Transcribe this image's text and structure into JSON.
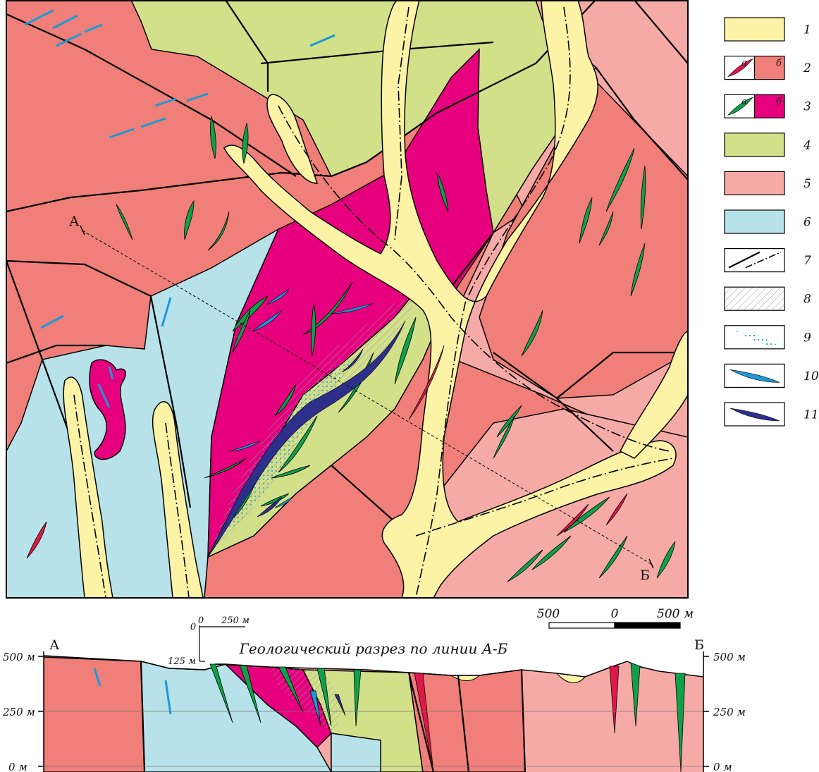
{
  "colors": {
    "alluvium": "#fdf3a6",
    "granite_dark": "#ef7f78",
    "granite_dike": "#e0184a",
    "basite_dike": "#10a04a",
    "basite_massif": "#e6007e",
    "greenstone": "#d3e08a",
    "granite_light": "#f6aaa6",
    "metamorphic": "#b7e2ea",
    "ore_light": "#1a9ad6",
    "ore_dark": "#2e2f8a"
  },
  "profile": {
    "start": "А",
    "end": "Б"
  },
  "legend": [
    {
      "number": "1",
      "kind": "fill",
      "color": "#fdf3a6"
    },
    {
      "number": "2",
      "kind": "split",
      "sub_a": "а",
      "sub_b": "б",
      "color_a": "#e0184a",
      "color_b": "#ef7f78"
    },
    {
      "number": "3",
      "kind": "split",
      "sub_a": "а",
      "sub_b": "б",
      "color_a": "#10a04a",
      "color_b": "#e6007e"
    },
    {
      "number": "4",
      "kind": "fill",
      "color": "#d3e08a"
    },
    {
      "number": "5",
      "kind": "fill",
      "color": "#f6aaa6"
    },
    {
      "number": "6",
      "kind": "fill",
      "color": "#b7e2ea"
    },
    {
      "number": "7",
      "kind": "faults"
    },
    {
      "number": "8",
      "kind": "hatch"
    },
    {
      "number": "9",
      "kind": "dots"
    },
    {
      "number": "10",
      "kind": "lens",
      "color": "#1a9ad6"
    },
    {
      "number": "11",
      "kind": "lens",
      "color": "#2e2f8a"
    }
  ],
  "scale_bar": {
    "left": "500",
    "zero": "0",
    "right": "500 м"
  },
  "section": {
    "title": "Геологический разрез по линии А-Б",
    "vertical_scale": {
      "h_zero": "0",
      "h_max": "250 м",
      "v_zero": "0",
      "v_max": "125 м"
    },
    "elevations": [
      "500 м",
      "250 м",
      "0 м"
    ]
  }
}
